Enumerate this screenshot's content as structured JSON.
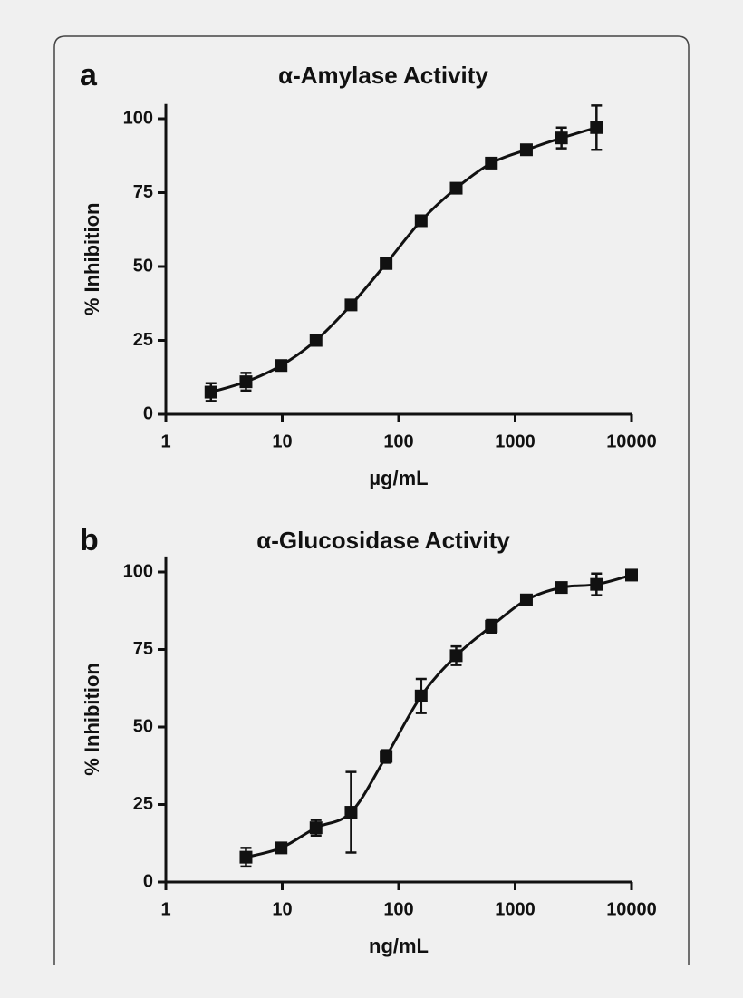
{
  "chart_data": [
    {
      "type": "scatter",
      "panel_label": "a",
      "title": "α-Amylase Activity",
      "x_label": "µg/mL",
      "y_label": "% Inhibition",
      "x": [
        2.44,
        4.88,
        9.77,
        19.5,
        39,
        78,
        156,
        312,
        625,
        1250,
        2500,
        5000
      ],
      "values": [
        7.5,
        11,
        16.5,
        25,
        37,
        51,
        65.5,
        76.5,
        85,
        89.5,
        93.5,
        97
      ],
      "errors": [
        3,
        3,
        1,
        1,
        1,
        1,
        1,
        1,
        1,
        1,
        3.5,
        7.5
      ],
      "color": "#111111",
      "log_x": true,
      "xlim": [
        1,
        10000
      ],
      "xticks": [
        1,
        10,
        100,
        1000,
        10000
      ],
      "ylim": [
        0,
        105
      ],
      "yticks": [
        0,
        25,
        50,
        75,
        100
      ]
    },
    {
      "type": "scatter",
      "panel_label": "b",
      "title": "α-Glucosidase Activity",
      "x_label": "ng/mL",
      "y_label": "% Inhibition",
      "x": [
        4.88,
        9.77,
        19.5,
        39,
        78,
        156,
        312,
        625,
        1250,
        2500,
        5000,
        10000
      ],
      "values": [
        8,
        11,
        17.5,
        22.5,
        40.5,
        60,
        73,
        82.5,
        91,
        95,
        96,
        99
      ],
      "errors": [
        3,
        1.5,
        2.5,
        13,
        2,
        5.5,
        3,
        2,
        1.5,
        1,
        3.5,
        1
      ],
      "color": "#111111",
      "log_x": true,
      "xlim": [
        1,
        10000
      ],
      "xticks": [
        1,
        10,
        100,
        1000,
        10000
      ],
      "ylim": [
        0,
        105
      ],
      "yticks": [
        0,
        25,
        50,
        75,
        100
      ]
    }
  ]
}
